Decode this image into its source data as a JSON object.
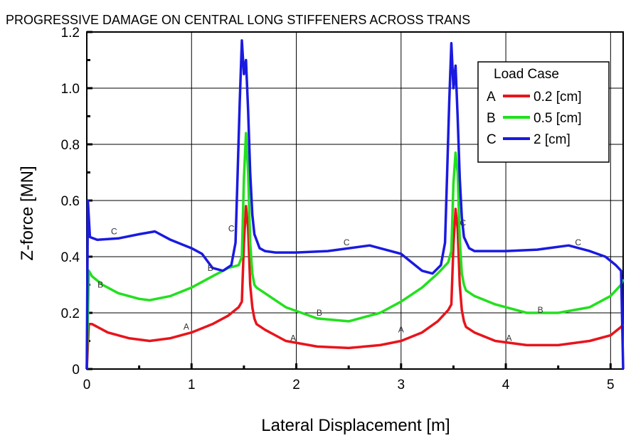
{
  "chart_data": {
    "type": "line",
    "title": "PROGRESSIVE DAMAGE ON CENTRAL LONG STIFFENERS ACROSS TRANS",
    "xlabel": "Lateral Displacement [m]",
    "ylabel": "Z-force [MN]",
    "xlim": [
      0,
      5.12
    ],
    "ylim": [
      0,
      1.2
    ],
    "xticks": [
      "0",
      "1",
      "2",
      "3",
      "4",
      "5"
    ],
    "yticks": [
      "0",
      "0.2",
      "0.4",
      "0.6",
      "0.8",
      "1.0",
      "1.2"
    ],
    "grid": true,
    "legend": {
      "title": "Load Case",
      "position": "top-right",
      "entries": [
        {
          "letter": "A",
          "label": "0.2 [cm]"
        },
        {
          "letter": "B",
          "label": "0.5 [cm]"
        },
        {
          "letter": "C",
          "label": "2 [cm]"
        }
      ]
    },
    "series": [
      {
        "letter": "A",
        "color": "#e8141c",
        "x": [
          0,
          0.02,
          0.05,
          0.2,
          0.4,
          0.6,
          0.8,
          1.0,
          1.2,
          1.35,
          1.45,
          1.48,
          1.5,
          1.52,
          1.54,
          1.56,
          1.58,
          1.6,
          1.62,
          1.7,
          1.9,
          2.2,
          2.5,
          2.8,
          3.0,
          3.2,
          3.35,
          3.45,
          3.48,
          3.5,
          3.52,
          3.54,
          3.56,
          3.58,
          3.6,
          3.62,
          3.7,
          3.9,
          4.2,
          4.5,
          4.8,
          5.0,
          5.1,
          5.12
        ],
        "values": [
          0.0,
          0.16,
          0.16,
          0.13,
          0.11,
          0.1,
          0.11,
          0.13,
          0.16,
          0.19,
          0.22,
          0.24,
          0.45,
          0.58,
          0.5,
          0.3,
          0.22,
          0.18,
          0.16,
          0.14,
          0.1,
          0.08,
          0.075,
          0.085,
          0.1,
          0.13,
          0.17,
          0.21,
          0.23,
          0.44,
          0.57,
          0.5,
          0.3,
          0.21,
          0.17,
          0.15,
          0.13,
          0.1,
          0.085,
          0.085,
          0.1,
          0.12,
          0.15,
          0.16
        ]
      },
      {
        "letter": "B",
        "color": "#22e01e",
        "x": [
          0,
          0.02,
          0.05,
          0.15,
          0.3,
          0.5,
          0.6,
          0.8,
          1.0,
          1.2,
          1.35,
          1.45,
          1.48,
          1.5,
          1.52,
          1.54,
          1.56,
          1.58,
          1.6,
          1.62,
          1.7,
          1.9,
          2.2,
          2.5,
          2.8,
          3.0,
          3.2,
          3.35,
          3.45,
          3.48,
          3.5,
          3.52,
          3.54,
          3.56,
          3.58,
          3.6,
          3.62,
          3.7,
          3.9,
          4.2,
          4.5,
          4.8,
          5.0,
          5.1,
          5.12
        ],
        "values": [
          0.0,
          0.35,
          0.33,
          0.3,
          0.27,
          0.25,
          0.245,
          0.26,
          0.29,
          0.33,
          0.36,
          0.37,
          0.4,
          0.68,
          0.84,
          0.7,
          0.45,
          0.34,
          0.3,
          0.29,
          0.27,
          0.22,
          0.18,
          0.17,
          0.2,
          0.24,
          0.29,
          0.34,
          0.38,
          0.42,
          0.66,
          0.77,
          0.7,
          0.46,
          0.34,
          0.3,
          0.28,
          0.26,
          0.23,
          0.2,
          0.2,
          0.22,
          0.26,
          0.3,
          0.32
        ]
      },
      {
        "letter": "C",
        "color": "#1a1ae0",
        "x": [
          0,
          0.01,
          0.03,
          0.1,
          0.3,
          0.5,
          0.65,
          0.8,
          1.0,
          1.1,
          1.2,
          1.3,
          1.38,
          1.42,
          1.44,
          1.46,
          1.48,
          1.5,
          1.52,
          1.54,
          1.56,
          1.58,
          1.6,
          1.65,
          1.7,
          1.8,
          2.0,
          2.3,
          2.7,
          2.9,
          3.0,
          3.1,
          3.2,
          3.3,
          3.38,
          3.42,
          3.44,
          3.46,
          3.48,
          3.5,
          3.52,
          3.54,
          3.56,
          3.58,
          3.6,
          3.65,
          3.7,
          3.8,
          4.0,
          4.3,
          4.6,
          4.8,
          4.95,
          5.05,
          5.1,
          5.12
        ],
        "values": [
          0.0,
          0.6,
          0.47,
          0.46,
          0.465,
          0.48,
          0.49,
          0.46,
          0.43,
          0.41,
          0.36,
          0.35,
          0.37,
          0.45,
          0.7,
          0.95,
          1.17,
          1.05,
          1.1,
          0.92,
          0.7,
          0.55,
          0.48,
          0.43,
          0.42,
          0.415,
          0.415,
          0.42,
          0.44,
          0.42,
          0.41,
          0.38,
          0.35,
          0.34,
          0.37,
          0.45,
          0.7,
          0.95,
          1.16,
          1.0,
          1.08,
          0.9,
          0.68,
          0.54,
          0.47,
          0.43,
          0.42,
          0.42,
          0.42,
          0.425,
          0.44,
          0.42,
          0.4,
          0.37,
          0.35,
          0.0
        ]
      }
    ],
    "curve_labels": [
      {
        "text": "A",
        "x": 0.95,
        "y": 0.14
      },
      {
        "text": "A",
        "x": 1.97,
        "y": 0.1
      },
      {
        "text": "A",
        "x": 3.0,
        "y": 0.13
      },
      {
        "text": "A",
        "x": 4.03,
        "y": 0.1
      },
      {
        "text": "B",
        "x": 0.13,
        "y": 0.29
      },
      {
        "text": "B",
        "x": 1.18,
        "y": 0.35
      },
      {
        "text": "B",
        "x": 2.22,
        "y": 0.19
      },
      {
        "text": "B",
        "x": 4.33,
        "y": 0.2
      },
      {
        "text": "C",
        "x": 0.26,
        "y": 0.48
      },
      {
        "text": "C",
        "x": 1.38,
        "y": 0.49
      },
      {
        "text": "C",
        "x": 2.48,
        "y": 0.44
      },
      {
        "text": "C",
        "x": 3.59,
        "y": 0.51
      },
      {
        "text": "C",
        "x": 4.69,
        "y": 0.44
      }
    ]
  }
}
